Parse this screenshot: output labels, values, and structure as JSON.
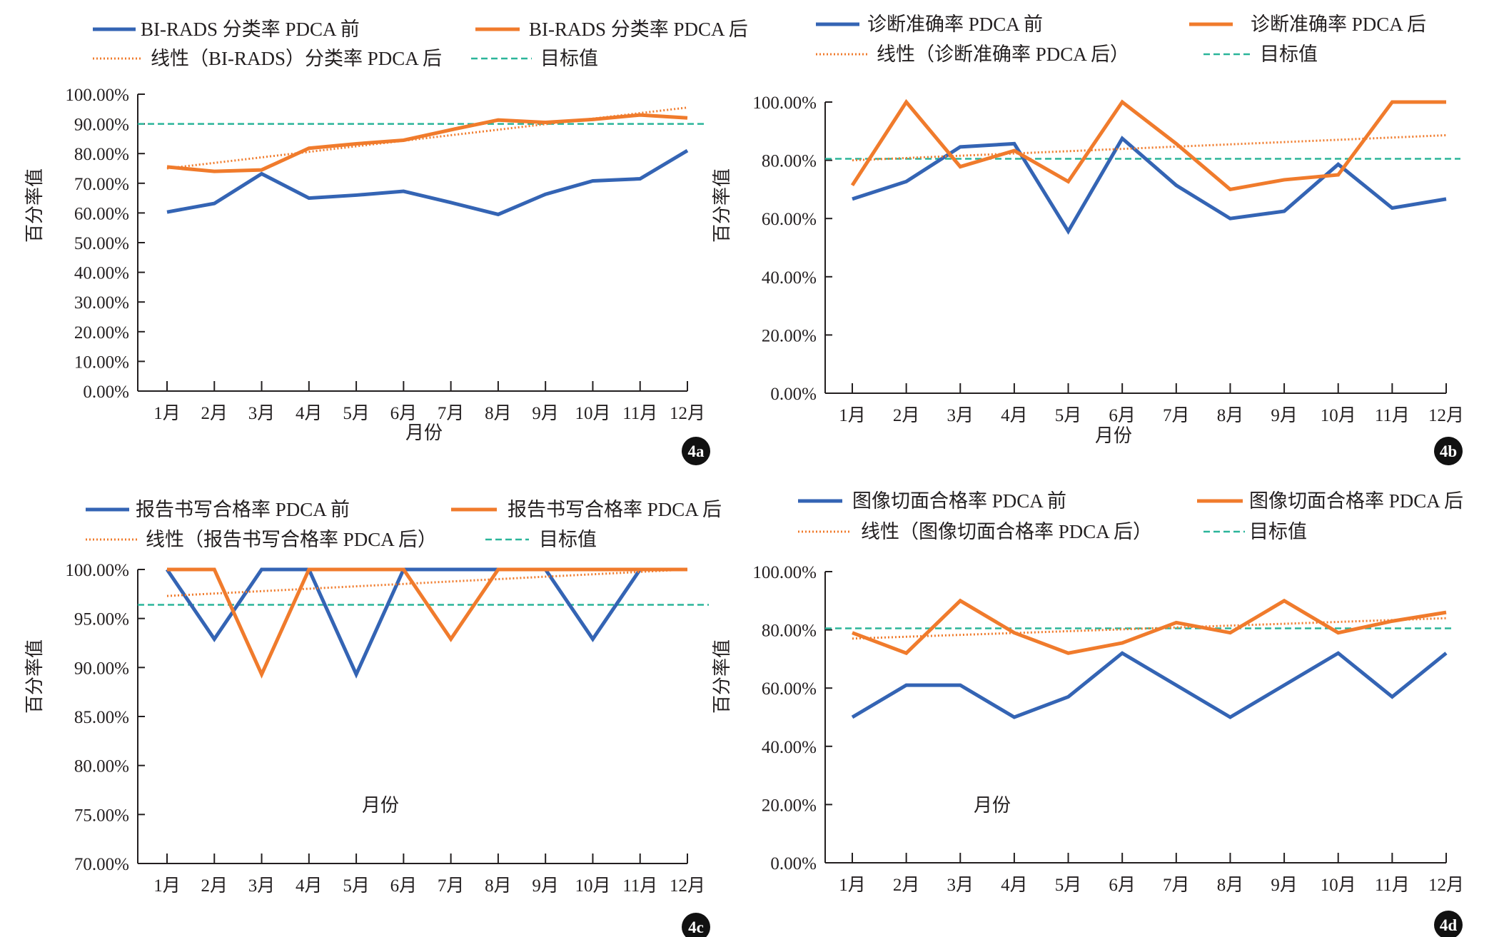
{
  "chart_data": [
    {
      "type": "line",
      "badge": "4a",
      "xlabel": "月份",
      "ylabel": "百分率值",
      "categories": [
        "1月",
        "2月",
        "3月",
        "4月",
        "5月",
        "6月",
        "7月",
        "8月",
        "9月",
        "10月",
        "11月",
        "12月"
      ],
      "ylim": [
        0,
        100
      ],
      "yticks": [
        0,
        10,
        20,
        30,
        40,
        50,
        60,
        70,
        80,
        90,
        100
      ],
      "ytick_labels": [
        "0.00%",
        "10.00%",
        "20.00%",
        "30.00%",
        "40.00%",
        "50.00%",
        "60.00%",
        "70.00%",
        "80.00%",
        "90.00%",
        "100.00%"
      ],
      "series": [
        {
          "name": "BI-RADS 分类率 PDCA 前",
          "color": "#3464b4",
          "values": [
            60.3,
            63.2,
            73.2,
            65.0,
            66.0,
            67.3,
            63.5,
            59.5,
            66.3,
            70.8,
            71.5,
            81.0
          ]
        },
        {
          "name": "BI-RADS 分类率 PDCA 后",
          "color": "#f07b2c",
          "values": [
            75.5,
            74.0,
            74.5,
            81.8,
            83.3,
            84.5,
            88.0,
            91.3,
            90.5,
            91.5,
            93.0,
            92.0
          ]
        }
      ],
      "trendline": {
        "name": "线性（BI-RADS）分类率 PDCA 后",
        "color": "#f07b2c",
        "start": 75.0,
        "end": 95.5
      },
      "target": {
        "name": "目标值",
        "color": "#2bb59a",
        "value": 90.0
      },
      "legend": "top"
    },
    {
      "type": "line",
      "badge": "4b",
      "xlabel": "月份",
      "ylabel": "百分率值",
      "categories": [
        "1月",
        "2月",
        "3月",
        "4月",
        "5月",
        "6月",
        "7月",
        "8月",
        "9月",
        "10月",
        "11月",
        "12月"
      ],
      "ylim": [
        0,
        100
      ],
      "yticks": [
        0,
        20,
        40,
        60,
        80,
        100
      ],
      "ytick_labels": [
        "0.00%",
        "20.00%",
        "40.00%",
        "60.00%",
        "80.00%",
        "100.00%"
      ],
      "series": [
        {
          "name": "诊断准确率 PDCA 前",
          "color": "#3464b4",
          "values": [
            66.7,
            72.7,
            84.6,
            85.7,
            55.6,
            87.5,
            71.4,
            60.0,
            62.5,
            78.6,
            63.6,
            66.7
          ]
        },
        {
          "name": "诊断准确率 PDCA 后",
          "color": "#f07b2c",
          "values": [
            71.4,
            100,
            77.8,
            83.3,
            72.7,
            100,
            85.7,
            70.0,
            73.3,
            75.0,
            100,
            100
          ]
        }
      ],
      "trendline": {
        "name": "线性（诊断准确率 PDCA 后）",
        "color": "#f07b2c",
        "start": 80.0,
        "end": 88.6
      },
      "target": {
        "name": "目标值",
        "color": "#2bb59a",
        "value": 80.5
      },
      "legend": "top"
    },
    {
      "type": "line",
      "badge": "4c",
      "xlabel": "月份",
      "ylabel": "百分率值",
      "categories": [
        "1月",
        "2月",
        "3月",
        "4月",
        "5月",
        "6月",
        "7月",
        "8月",
        "9月",
        "10月",
        "11月",
        "12月"
      ],
      "ylim": [
        70,
        100
      ],
      "yticks": [
        70,
        75,
        80,
        85,
        90,
        95,
        100
      ],
      "ytick_labels": [
        "70.00%",
        "75.00%",
        "80.00%",
        "85.00%",
        "90.00%",
        "95.00%",
        "100.00%"
      ],
      "series": [
        {
          "name": "报告书写合格率 PDCA 前",
          "color": "#3464b4",
          "values": [
            100,
            92.9,
            100,
            100,
            89.3,
            100,
            100,
            100,
            100,
            92.9,
            100,
            100
          ]
        },
        {
          "name": "报告书写合格率 PDCA 后",
          "color": "#f07b2c",
          "values": [
            100,
            100,
            89.3,
            100,
            100,
            100,
            92.9,
            100,
            100,
            100,
            100,
            100
          ]
        }
      ],
      "trendline": {
        "name": "线性（报告书写合格率 PDCA 后）",
        "color": "#f07b2c",
        "start": 97.3,
        "end": 100.0
      },
      "target": {
        "name": "目标值",
        "color": "#2bb59a",
        "value": 96.4
      },
      "legend": "top"
    },
    {
      "type": "line",
      "badge": "4d",
      "xlabel": "月份",
      "ylabel": "百分率值",
      "categories": [
        "1月",
        "2月",
        "3月",
        "4月",
        "5月",
        "6月",
        "7月",
        "8月",
        "9月",
        "10月",
        "11月",
        "12月"
      ],
      "ylim": [
        0,
        100
      ],
      "yticks": [
        0,
        20,
        40,
        60,
        80,
        100
      ],
      "ytick_labels": [
        "0.00%",
        "20.00%",
        "40.00%",
        "60.00%",
        "80.00%",
        "100.00%"
      ],
      "series": [
        {
          "name": "图像切面合格率 PDCA 前",
          "color": "#3464b4",
          "values": [
            50,
            61,
            61,
            50,
            57,
            72,
            61,
            50,
            61,
            72,
            57,
            72
          ]
        },
        {
          "name": "图像切面合格率 PDCA 后",
          "color": "#f07b2c",
          "values": [
            79,
            72,
            90,
            79,
            72,
            75.5,
            82.5,
            79,
            90,
            79,
            83,
            86
          ]
        }
      ],
      "trendline": {
        "name": "线性（图像切面合格率 PDCA 后）",
        "color": "#f07b2c",
        "start": 77.0,
        "end": 84.0
      },
      "target": {
        "name": "目标值",
        "color": "#2bb59a",
        "value": 80.5
      },
      "legend": "top"
    }
  ]
}
